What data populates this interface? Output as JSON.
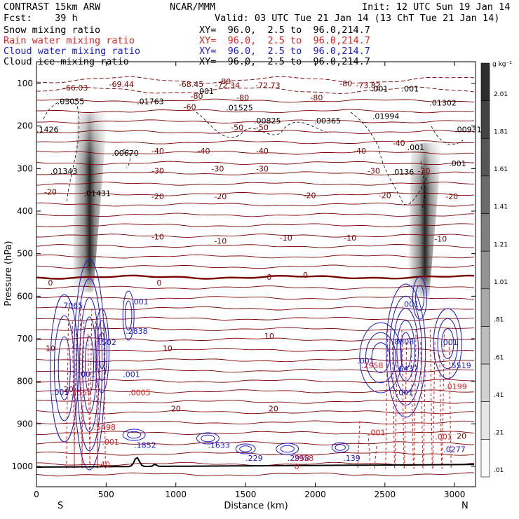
{
  "header": {
    "title": "CONTRAST 15km ARW",
    "center": "NCAR/MMM",
    "init": "Init: 12 UTC Sun 19 Jan 14",
    "fcst": "Fcst:    39 h",
    "valid": "Valid: 03 UTC Tue 21 Jan 14 (13 ChT Tue 21 Jan 14)"
  },
  "fields": [
    {
      "label": "Snow mixing ratio",
      "xy": "XY=  96.0,  2.5 to  96.0,214.7",
      "color": "#000000"
    },
    {
      "label": "Rain water mixing ratio",
      "xy": "XY=  96.0,  2.5 to  96.0,214.7",
      "color": "#e02020"
    },
    {
      "label": "Cloud water mixing ratio",
      "xy": "XY=  96.0,  2.5 to  96.0,214.7",
      "color": "#1a1ad0"
    },
    {
      "label": "Cloud ice mixing ratio",
      "xy": "XY=  96.0,  2.5 to  96.0,214.7",
      "color": "#000000"
    }
  ],
  "chart_data": {
    "type": "heatmap",
    "xlabel": "Distance (km)",
    "ylabel": "Pressure (hPa)",
    "xlim": [
      0,
      3150
    ],
    "ylim": [
      1050,
      50
    ],
    "x_ticks": [
      0,
      500,
      1000,
      1500,
      2000,
      2500,
      3000
    ],
    "y_ticks": [
      100,
      200,
      300,
      400,
      500,
      600,
      700,
      800,
      900,
      1000
    ],
    "left_end_label": "S",
    "right_end_label": "N",
    "colorbar": {
      "unit": "g kg⁻¹",
      "labels": [
        "2.01",
        "1.81",
        "1.61",
        "1.41",
        "1.21",
        "1.01",
        ".81",
        ".61",
        ".41",
        ".21",
        ".01"
      ]
    },
    "snow_plumes": [
      {
        "x_top": 400,
        "x_bottom": 330,
        "p_top": 170,
        "p_bottom": 590
      },
      {
        "x_top": 2800,
        "x_bottom": 2740,
        "p_top": 240,
        "p_bottom": 600
      }
    ],
    "temperature_labels": [
      {
        "x": 280,
        "p": 110,
        "text": "-66.03"
      },
      {
        "x": 610,
        "p": 102,
        "text": "-69.44"
      },
      {
        "x": 1110,
        "p": 102,
        "text": "-68.45"
      },
      {
        "x": 1370,
        "p": 104,
        "text": "-72.34"
      },
      {
        "x": 1660,
        "p": 104,
        "text": "-72.73"
      },
      {
        "x": 2380,
        "p": 104,
        "text": "-73.82"
      },
      {
        "x": 1350,
        "p": 95,
        "text": "-80"
      },
      {
        "x": 2220,
        "p": 100,
        "text": "-80"
      },
      {
        "x": 1150,
        "p": 130,
        "text": "-80"
      },
      {
        "x": 1480,
        "p": 133,
        "text": "-80"
      },
      {
        "x": 2010,
        "p": 133,
        "text": "-80"
      },
      {
        "x": 1100,
        "p": 155,
        "text": "-60"
      },
      {
        "x": 1440,
        "p": 203,
        "text": "-50"
      },
      {
        "x": 1620,
        "p": 203,
        "text": "-50"
      },
      {
        "x": 870,
        "p": 258,
        "text": "-40"
      },
      {
        "x": 1200,
        "p": 258,
        "text": "-40"
      },
      {
        "x": 1620,
        "p": 258,
        "text": "-40"
      },
      {
        "x": 2320,
        "p": 258,
        "text": "-40"
      },
      {
        "x": 2600,
        "p": 240,
        "text": "-40"
      },
      {
        "x": 870,
        "p": 305,
        "text": "-30"
      },
      {
        "x": 1300,
        "p": 300,
        "text": "-30"
      },
      {
        "x": 1620,
        "p": 300,
        "text": "-30"
      },
      {
        "x": 2420,
        "p": 305,
        "text": "-30"
      },
      {
        "x": 2780,
        "p": 305,
        "text": "-30"
      },
      {
        "x": 100,
        "p": 355,
        "text": "-20"
      },
      {
        "x": 870,
        "p": 365,
        "text": "-20"
      },
      {
        "x": 1320,
        "p": 365,
        "text": "-20"
      },
      {
        "x": 1960,
        "p": 363,
        "text": "-20"
      },
      {
        "x": 2500,
        "p": 363,
        "text": "-20"
      },
      {
        "x": 2980,
        "p": 365,
        "text": "-20"
      },
      {
        "x": 870,
        "p": 460,
        "text": "-10"
      },
      {
        "x": 1320,
        "p": 470,
        "text": "-10"
      },
      {
        "x": 1790,
        "p": 463,
        "text": "-10"
      },
      {
        "x": 2250,
        "p": 463,
        "text": "-10"
      },
      {
        "x": 2900,
        "p": 465,
        "text": "-10"
      },
      {
        "x": 100,
        "p": 568,
        "text": "0"
      },
      {
        "x": 880,
        "p": 568,
        "text": "0"
      },
      {
        "x": 1670,
        "p": 555,
        "text": "0"
      },
      {
        "x": 1930,
        "p": 550,
        "text": "0"
      },
      {
        "x": 100,
        "p": 722,
        "text": "10"
      },
      {
        "x": 940,
        "p": 722,
        "text": "10"
      },
      {
        "x": 1670,
        "p": 693,
        "text": "10"
      },
      {
        "x": 1000,
        "p": 864,
        "text": "20"
      },
      {
        "x": 1700,
        "p": 864,
        "text": "20"
      },
      {
        "x": 230,
        "p": 819,
        "text": "20"
      },
      {
        "x": 3050,
        "p": 928,
        "text": "20"
      }
    ],
    "extrema_labels": [
      {
        "x": 150,
        "p": 142,
        "text": ".03055",
        "color": "#000000"
      },
      {
        "x": 720,
        "p": 142,
        "text": ".01763",
        "color": "#000000"
      },
      {
        "x": 1150,
        "p": 118,
        "text": ".001",
        "color": "#000000"
      },
      {
        "x": 1360,
        "p": 157,
        "text": ".01525",
        "color": "#000000"
      },
      {
        "x": 1560,
        "p": 187,
        "text": ".00825",
        "color": "#000000"
      },
      {
        "x": 1990,
        "p": 187,
        "text": ".00365",
        "color": "#000000"
      },
      {
        "x": 2400,
        "p": 112,
        "text": ".001",
        "color": "#000000"
      },
      {
        "x": 2620,
        "p": 112,
        "text": ".001",
        "color": "#000000"
      },
      {
        "x": 2410,
        "p": 177,
        "text": ".01994",
        "color": "#000000"
      },
      {
        "x": 2820,
        "p": 145,
        "text": ".01302",
        "color": "#000000"
      },
      {
        "x": 3000,
        "p": 208,
        "text": ".00931",
        "color": "#000000"
      },
      {
        "x": 0,
        "p": 208,
        "text": ".1426",
        "color": "#000000"
      },
      {
        "x": 540,
        "p": 263,
        "text": ".00670",
        "color": "#000000"
      },
      {
        "x": 100,
        "p": 306,
        "text": ".01343",
        "color": "#000000"
      },
      {
        "x": 340,
        "p": 358,
        "text": ".01431",
        "color": "#000000"
      },
      {
        "x": 2660,
        "p": 250,
        "text": ".001",
        "color": "#000000"
      },
      {
        "x": 2960,
        "p": 288,
        "text": ".001",
        "color": "#000000"
      },
      {
        "x": 2550,
        "p": 308,
        "text": ".0136",
        "color": "#000000"
      },
      {
        "x": 175,
        "p": 622,
        "text": ".7065",
        "color": "#1a1ad0"
      },
      {
        "x": 680,
        "p": 613,
        "text": ".001",
        "color": "#1a1ad0"
      },
      {
        "x": 640,
        "p": 682,
        "text": ".2838",
        "color": "#1a1ad0"
      },
      {
        "x": 450,
        "p": 708,
        "text": ".502",
        "color": "#1a1ad0"
      },
      {
        "x": 300,
        "p": 783,
        "text": ".001",
        "color": "#1a1ad0"
      },
      {
        "x": 620,
        "p": 783,
        "text": ".001",
        "color": "#1a1ad0"
      },
      {
        "x": 110,
        "p": 825,
        "text": ".001",
        "color": "#1a1ad0"
      },
      {
        "x": 2300,
        "p": 752,
        "text": ".001",
        "color": "#1a1ad0"
      },
      {
        "x": 2580,
        "p": 770,
        "text": ".6437",
        "color": "#1a1ad0"
      },
      {
        "x": 2550,
        "p": 707,
        "text": ".8808",
        "color": "#1a1ad0"
      },
      {
        "x": 2620,
        "p": 618,
        "text": ".001",
        "color": "#1a1ad0"
      },
      {
        "x": 2900,
        "p": 708,
        "text": ".001",
        "color": "#1a1ad0"
      },
      {
        "x": 2960,
        "p": 763,
        "text": ".5519",
        "color": "#1a1ad0"
      },
      {
        "x": 2580,
        "p": 826,
        "text": ".001",
        "color": "#1a1ad0"
      },
      {
        "x": 700,
        "p": 950,
        "text": ".1852",
        "color": "#1a1ad0"
      },
      {
        "x": 1230,
        "p": 950,
        "text": ".1633",
        "color": "#1a1ad0"
      },
      {
        "x": 1500,
        "p": 980,
        "text": ".229",
        "color": "#1a1ad0"
      },
      {
        "x": 1800,
        "p": 980,
        "text": ".2958",
        "color": "#1a1ad0"
      },
      {
        "x": 2200,
        "p": 980,
        "text": ".139",
        "color": "#1a1ad0"
      },
      {
        "x": 2920,
        "p": 960,
        "text": ".0277",
        "color": "#1a1ad0"
      },
      {
        "x": 240,
        "p": 826,
        "text": ".2555",
        "color": "#e02020"
      },
      {
        "x": 660,
        "p": 826,
        "text": ".0005",
        "color": "#e02020"
      },
      {
        "x": 410,
        "p": 908,
        "text": ".5498",
        "color": "#e02020"
      },
      {
        "x": 470,
        "p": 942,
        "text": ".001",
        "color": "#e02020"
      },
      {
        "x": 440,
        "p": 995,
        "text": ".40",
        "color": "#e02020"
      },
      {
        "x": 1830,
        "p": 980,
        "text": ".2958",
        "color": "#e02020"
      },
      {
        "x": 1850,
        "p": 1000,
        "text": "0",
        "color": "#e02020"
      },
      {
        "x": 2380,
        "p": 920,
        "text": ".001",
        "color": "#e02020"
      },
      {
        "x": 2860,
        "p": 930,
        "text": ".001",
        "color": "#e02020"
      },
      {
        "x": 2330,
        "p": 763,
        "text": ".2958",
        "color": "#e02020"
      },
      {
        "x": 2930,
        "p": 812,
        "text": ".0199",
        "color": "#e02020"
      }
    ]
  }
}
